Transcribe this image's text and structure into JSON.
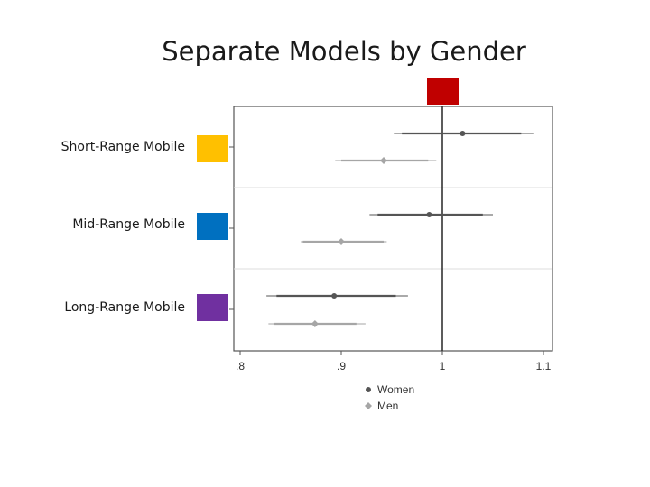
{
  "title": "Separate Models by Gender",
  "colors": {
    "short_range": "#ffc000",
    "mid_range": "#0070c0",
    "long_range": "#7030a0",
    "top_marker": "#c00000",
    "women": "#555555",
    "men": "#a6a6a6"
  },
  "chart_data": {
    "type": "forest",
    "title": "Separate Models by Gender",
    "categories": [
      "Short-Range Mobile",
      "Mid-Range Mobile",
      "Long-Range Mobile"
    ],
    "xlim": [
      0.8,
      1.1
    ],
    "x_ticks": [
      ".8",
      ".9",
      "1",
      "1.1"
    ],
    "x_tick_values": [
      0.8,
      0.9,
      1.0,
      1.1
    ],
    "reference_line": 1.0,
    "grid": "horizontal separators between groups",
    "legend_position": "bottom",
    "series": [
      {
        "name": "Women",
        "estimates": [
          1.02,
          0.987,
          0.893
        ],
        "ci_inner": [
          [
            0.96,
            1.078
          ],
          [
            0.936,
            1.04
          ],
          [
            0.836,
            0.954
          ]
        ],
        "ci_outer": [
          [
            0.952,
            1.09
          ],
          [
            0.928,
            1.05
          ],
          [
            0.826,
            0.966
          ]
        ]
      },
      {
        "name": "Men",
        "estimates": [
          0.942,
          0.9,
          0.874
        ],
        "ci_inner": [
          [
            0.9,
            0.986
          ],
          [
            0.862,
            0.942
          ],
          [
            0.833,
            0.915
          ]
        ],
        "ci_outer": [
          [
            0.894,
            0.994
          ],
          [
            0.86,
            0.945
          ],
          [
            0.828,
            0.924
          ]
        ]
      }
    ]
  }
}
